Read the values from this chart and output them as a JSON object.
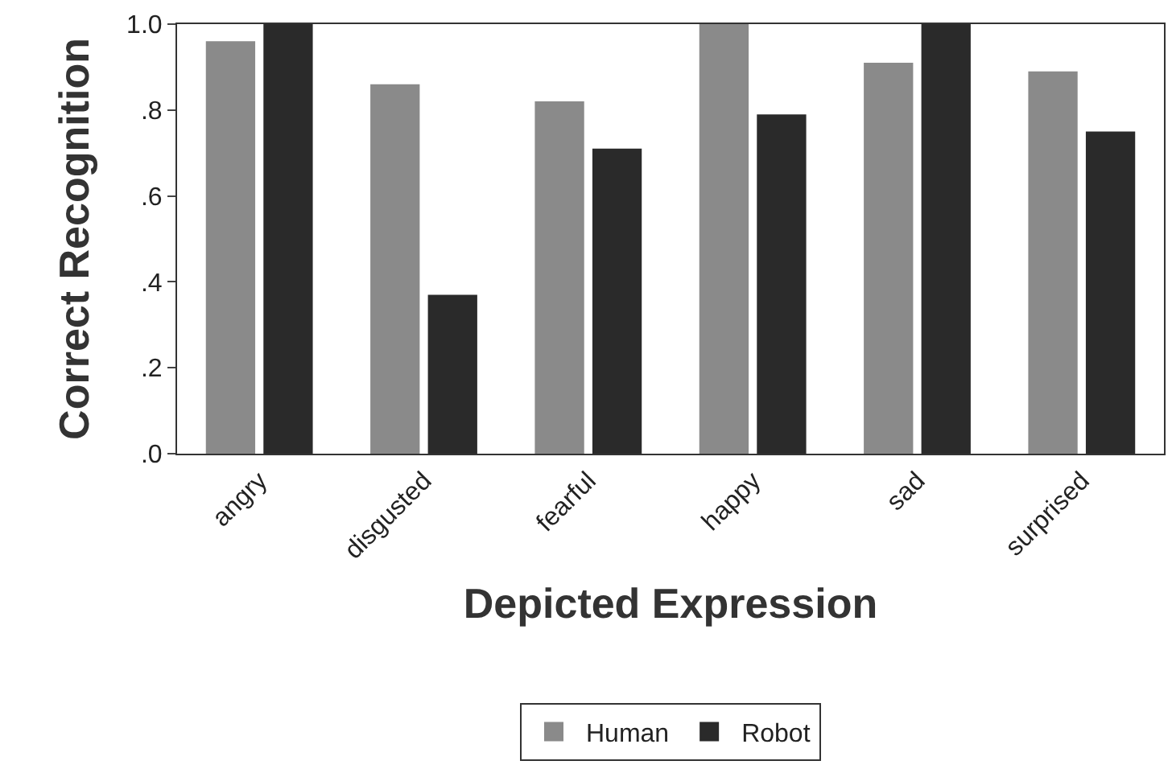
{
  "chart_data": {
    "type": "bar",
    "xlabel": "Depicted Expression",
    "ylabel": "Correct Recognition",
    "categories": [
      "angry",
      "disgusted",
      "fearful",
      "happy",
      "sad",
      "surprised"
    ],
    "series": [
      {
        "name": "Human",
        "color": "#8a8a8a",
        "values": [
          0.96,
          0.86,
          0.82,
          1.0,
          0.91,
          0.89
        ]
      },
      {
        "name": "Robot",
        "color": "#2a2a2a",
        "values": [
          1.0,
          0.37,
          0.71,
          0.79,
          1.0,
          0.75
        ]
      }
    ],
    "ylim": [
      0,
      1
    ],
    "yticks": [
      {
        "value": 0,
        "label": ".0"
      },
      {
        "value": 0.2,
        "label": ".2"
      },
      {
        "value": 0.4,
        "label": ".4"
      },
      {
        "value": 0.6,
        "label": ".6"
      },
      {
        "value": 0.8,
        "label": ".8"
      },
      {
        "value": 1.0,
        "label": "1.0"
      }
    ],
    "legend": "bottom"
  }
}
